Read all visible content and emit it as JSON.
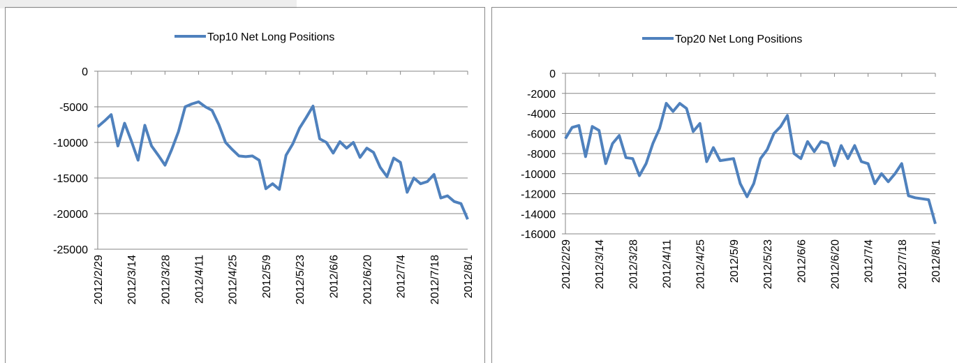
{
  "chart_data": [
    {
      "type": "line",
      "ylim": [
        -25000,
        0
      ],
      "yticks": [
        -25000,
        -20000,
        -15000,
        -10000,
        -5000,
        0
      ],
      "grid": true,
      "categories": [
        "2012/2/29",
        null,
        null,
        null,
        null,
        "2012/3/14",
        null,
        null,
        null,
        null,
        "2012/3/28",
        null,
        null,
        null,
        null,
        "2012/4/11",
        null,
        null,
        null,
        null,
        "2012/4/25",
        null,
        null,
        null,
        null,
        "2012/5/9",
        null,
        null,
        null,
        null,
        "2012/5/23",
        null,
        null,
        null,
        null,
        "2012/6/6",
        null,
        null,
        null,
        null,
        "2012/6/20",
        null,
        null,
        null,
        null,
        "2012/7/4",
        null,
        null,
        null,
        null,
        "2012/7/18",
        null,
        null,
        null,
        null,
        "2012/8/1"
      ],
      "series": [
        {
          "name": "Top10 Net Long Positions",
          "color": "#4f81bd",
          "values": [
            -7800,
            -7000,
            -6100,
            -10500,
            -7300,
            -9800,
            -12500,
            -7600,
            -10500,
            -11800,
            -13200,
            -11000,
            -8500,
            -5000,
            -4600,
            -4300,
            -5000,
            -5500,
            -7500,
            -10000,
            -11000,
            -11900,
            -12000,
            -11900,
            -12500,
            -16500,
            -15800,
            -16600,
            -11800,
            -10200,
            -8000,
            -6500,
            -4900,
            -9500,
            -10000,
            -11500,
            -9900,
            -10800,
            -10000,
            -12100,
            -10800,
            -11400,
            -13500,
            -14800,
            -12200,
            -12800,
            -17000,
            -15000,
            -15800,
            -15500,
            -14500,
            -17800,
            -17500,
            -18300,
            -18600,
            -20800
          ]
        }
      ]
    },
    {
      "type": "line",
      "ylim": [
        -16000,
        0
      ],
      "yticks": [
        -16000,
        -14000,
        -12000,
        -10000,
        -8000,
        -6000,
        -4000,
        -2000,
        0
      ],
      "grid": true,
      "categories": [
        "2012/2/29",
        null,
        null,
        null,
        null,
        "2012/3/14",
        null,
        null,
        null,
        null,
        "2012/3/28",
        null,
        null,
        null,
        null,
        "2012/4/11",
        null,
        null,
        null,
        null,
        "2012/4/25",
        null,
        null,
        null,
        null,
        "2012/5/9",
        null,
        null,
        null,
        null,
        "2012/5/23",
        null,
        null,
        null,
        null,
        "2012/6/6",
        null,
        null,
        null,
        null,
        "2012/6/20",
        null,
        null,
        null,
        null,
        "2012/7/4",
        null,
        null,
        null,
        null,
        "2012/7/18",
        null,
        null,
        null,
        null,
        "2012/8/1"
      ],
      "series": [
        {
          "name": "Top20 Net Long Positions",
          "color": "#4f81bd",
          "values": [
            -6500,
            -5400,
            -5200,
            -8300,
            -5300,
            -5700,
            -9000,
            -7000,
            -6200,
            -8400,
            -8500,
            -10200,
            -9000,
            -7000,
            -5500,
            -3000,
            -3800,
            -3000,
            -3500,
            -5800,
            -5000,
            -8800,
            -7400,
            -8700,
            -8600,
            -8500,
            -11000,
            -12300,
            -11000,
            -8500,
            -7600,
            -6000,
            -5300,
            -4200,
            -8000,
            -8500,
            -6800,
            -7800,
            -6800,
            -7000,
            -9200,
            -7200,
            -8500,
            -7200,
            -8800,
            -9000,
            -11000,
            -10000,
            -10800,
            -10000,
            -9000,
            -12200,
            -12400,
            -12500,
            -12600,
            -15000
          ]
        }
      ]
    }
  ]
}
